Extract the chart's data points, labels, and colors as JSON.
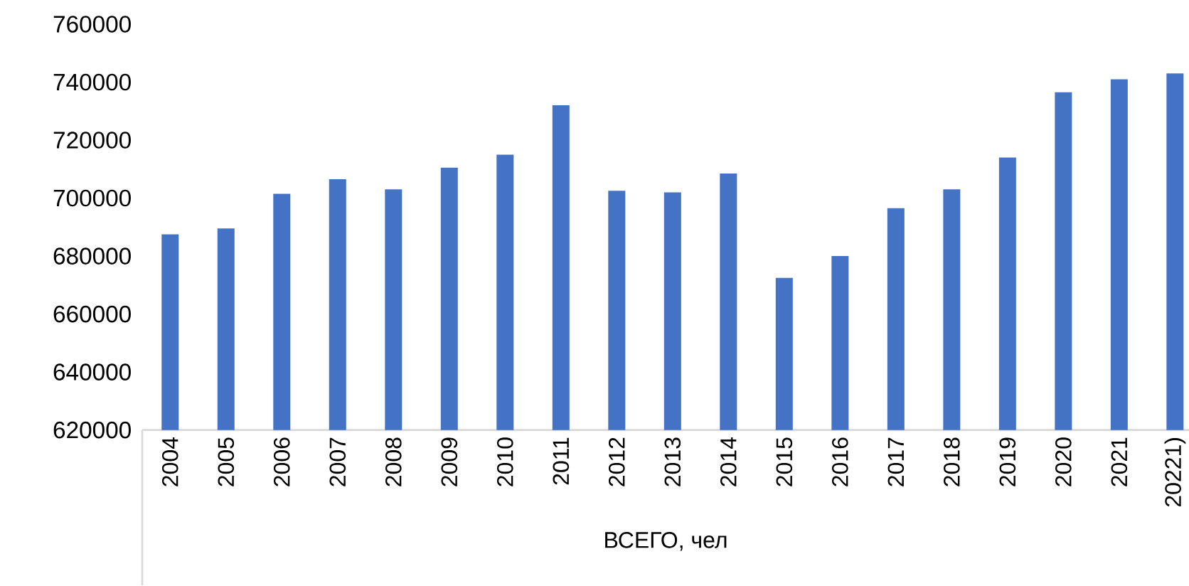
{
  "chart_data": {
    "type": "bar",
    "xlabel": "ВСЕГО, чел",
    "categories": [
      "2004",
      "2005",
      "2006",
      "2007",
      "2008",
      "2009",
      "2010",
      "2011",
      "2012",
      "2013",
      "2014",
      "2015",
      "2016",
      "2017",
      "2018",
      "2019",
      "2020",
      "2021",
      "20221)"
    ],
    "values": [
      687500,
      689500,
      701500,
      706500,
      703000,
      710500,
      715000,
      732000,
      702500,
      702000,
      708500,
      672500,
      680000,
      696500,
      703000,
      714000,
      736500,
      741000,
      743000
    ],
    "color": "#4472c4",
    "ylim": [
      620000,
      760000
    ],
    "yticks": [
      620000,
      640000,
      660000,
      680000,
      700000,
      720000,
      740000,
      760000
    ]
  }
}
